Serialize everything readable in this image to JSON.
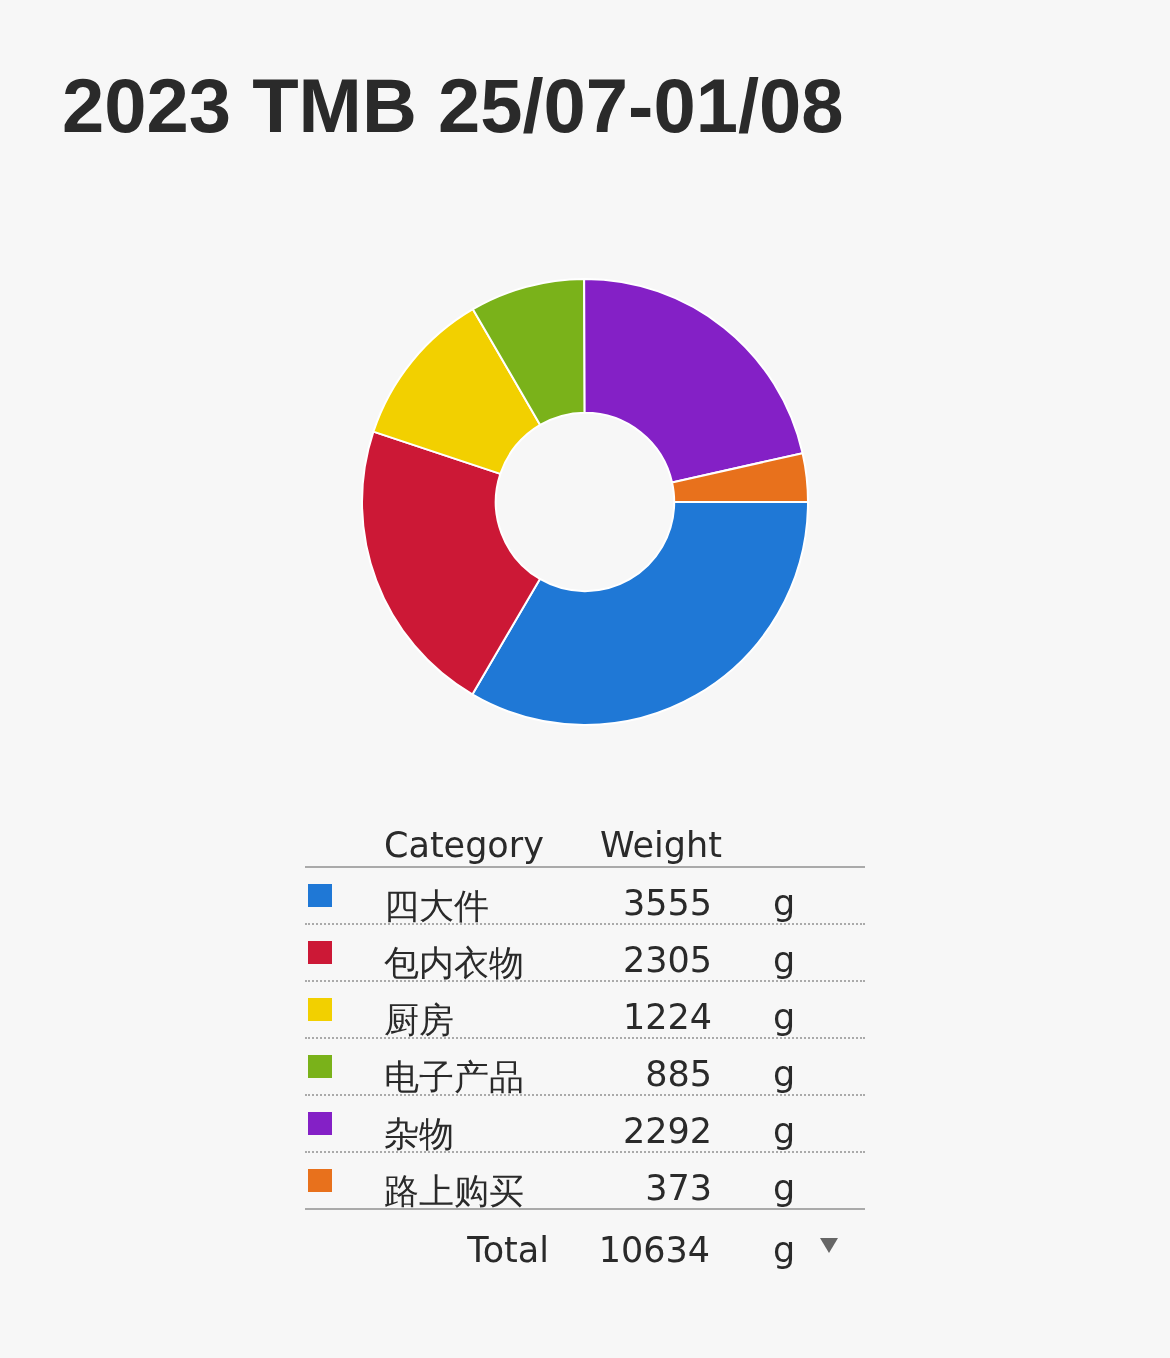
{
  "chart_data": {
    "type": "donut",
    "title": "2023 TMB 25/07-01/08",
    "categories": [
      "四大件",
      "包内衣物",
      "厨房",
      "电子产品",
      "杂物",
      "路上购买"
    ],
    "values": [
      3555,
      2305,
      1224,
      885,
      2292,
      373
    ],
    "colors": [
      "#1f78d6",
      "#cc1836",
      "#f2d000",
      "#7ab21a",
      "#8420c6",
      "#e8711c"
    ],
    "legend": "bottom",
    "legend_title": "Category",
    "ylabel": "Weight",
    "data_labels": true,
    "totals": [
      "10634"
    ],
    "annotations": [
      "Total",
      "g"
    ]
  }
}
